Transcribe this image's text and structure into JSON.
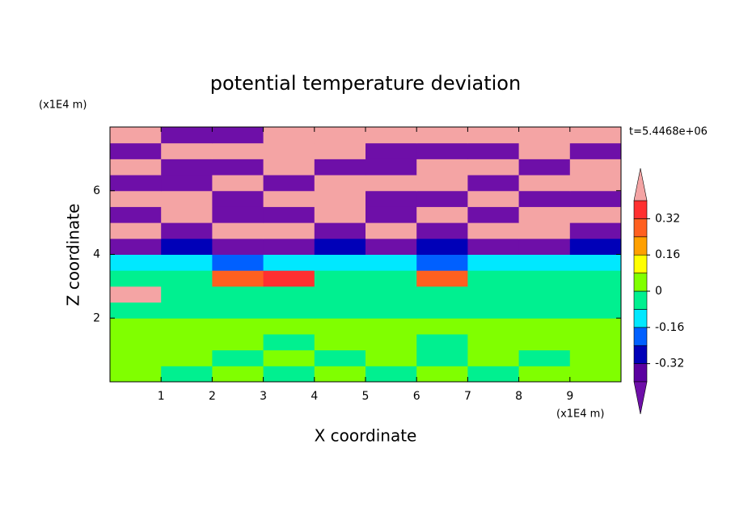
{
  "chart_data": {
    "type": "contour",
    "title": "potential temperature deviation",
    "x_label": "X coordinate",
    "y_label": "Z coordinate",
    "x_unit_label": "(x1E4 m)",
    "y_unit_label": "(x1E4 m)",
    "annotation": "t=5.4468e+06",
    "xlim": [
      0,
      10
    ],
    "ylim": [
      0,
      8
    ],
    "xticks": [
      1,
      2,
      3,
      4,
      5,
      6,
      7,
      8,
      9
    ],
    "yticks": [
      2,
      4,
      6
    ],
    "x": [
      0.5,
      1.5,
      2.5,
      3.5,
      4.5,
      5.5,
      6.5,
      7.5,
      8.5,
      9.5
    ],
    "y": [
      0.25,
      0.75,
      1.25,
      1.75,
      2.25,
      2.75,
      3.25,
      3.75,
      4.25,
      4.75,
      5.25,
      5.75,
      6.25,
      6.75,
      7.25,
      7.75
    ],
    "z": [
      [
        0.05,
        -0.03,
        0.05,
        -0.03,
        0.05,
        -0.03,
        0.05,
        -0.03,
        0.05,
        0.05
      ],
      [
        0.05,
        0.05,
        -0.03,
        0.05,
        -0.03,
        0.05,
        -0.03,
        0.05,
        -0.03,
        0.05
      ],
      [
        0.05,
        0.05,
        0.05,
        -0.03,
        0.05,
        0.05,
        -0.03,
        0.05,
        0.05,
        0.05
      ],
      [
        0.05,
        0.05,
        0.05,
        0.05,
        0.05,
        0.05,
        0.05,
        0.05,
        0.05,
        0.05
      ],
      [
        -0.03,
        -0.03,
        -0.03,
        -0.03,
        -0.03,
        -0.03,
        -0.03,
        -0.03,
        -0.03,
        -0.03
      ],
      [
        0.5,
        -0.03,
        -0.03,
        -0.03,
        -0.03,
        -0.03,
        -0.03,
        -0.03,
        -0.03,
        -0.03
      ],
      [
        -0.03,
        -0.03,
        0.3,
        0.35,
        -0.03,
        -0.03,
        0.3,
        -0.03,
        -0.03,
        -0.03
      ],
      [
        -0.1,
        -0.1,
        -0.2,
        -0.1,
        -0.1,
        -0.1,
        -0.2,
        -0.1,
        -0.1,
        -0.1
      ],
      [
        -0.5,
        -0.3,
        -0.5,
        -0.5,
        -0.3,
        -0.5,
        -0.3,
        -0.5,
        -0.5,
        -0.3
      ],
      [
        0.5,
        -0.5,
        0.5,
        0.5,
        -0.5,
        0.5,
        -0.5,
        0.5,
        0.5,
        -0.5
      ],
      [
        -0.5,
        0.5,
        -0.5,
        -0.5,
        0.5,
        -0.5,
        0.5,
        -0.5,
        0.5,
        0.5
      ],
      [
        0.5,
        0.5,
        -0.5,
        0.5,
        0.5,
        -0.5,
        -0.5,
        0.5,
        -0.5,
        -0.5
      ],
      [
        -0.5,
        -0.5,
        0.5,
        -0.5,
        0.5,
        0.5,
        0.5,
        -0.5,
        0.5,
        0.5
      ],
      [
        0.5,
        -0.5,
        -0.5,
        0.5,
        -0.5,
        -0.5,
        0.5,
        0.5,
        -0.5,
        0.5
      ],
      [
        -0.5,
        0.5,
        0.5,
        0.5,
        0.5,
        -0.5,
        -0.5,
        -0.5,
        0.5,
        -0.5
      ],
      [
        0.5,
        -0.5,
        -0.5,
        0.5,
        0.5,
        0.5,
        0.5,
        0.5,
        0.5,
        0.5
      ]
    ],
    "levels": [
      -0.4,
      -0.32,
      -0.24,
      -0.16,
      -0.08,
      0,
      0.08,
      0.16,
      0.24,
      0.32,
      0.4
    ],
    "colors": [
      "#6e0fa8",
      "#5a00a0",
      "#0000b8",
      "#0060ff",
      "#00e8ff",
      "#00f090",
      "#80ff00",
      "#ffff00",
      "#ffa000",
      "#ff6020",
      "#ff3030",
      "#f4a4a4"
    ],
    "colorbar_ticks": [
      -0.32,
      -0.16,
      0,
      0.16,
      0.32
    ]
  }
}
